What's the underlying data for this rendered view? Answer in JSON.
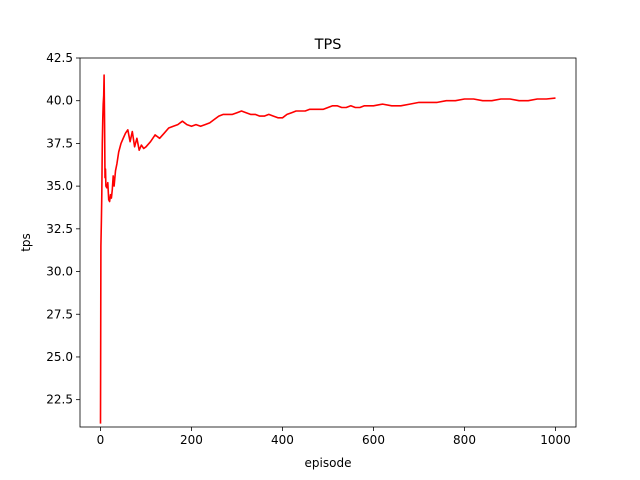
{
  "chart_data": {
    "type": "line",
    "title": "TPS",
    "xlabel": "episode",
    "ylabel": "tps",
    "xlim": [
      -45,
      1045
    ],
    "ylim": [
      20.9,
      42.5
    ],
    "xticks": [
      0,
      200,
      400,
      600,
      800,
      1000
    ],
    "xtick_labels": [
      "0",
      "200",
      "400",
      "600",
      "800",
      "1000"
    ],
    "yticks": [
      22.5,
      25.0,
      27.5,
      30.0,
      32.5,
      35.0,
      37.5,
      40.0,
      42.5
    ],
    "ytick_labels": [
      "22.5",
      "25.0",
      "27.5",
      "30.0",
      "32.5",
      "35.0",
      "37.5",
      "40.0",
      "42.5"
    ],
    "grid": false,
    "line_color": "#ff0000",
    "series": [
      {
        "x": [
          0,
          1,
          2,
          3,
          4,
          5,
          6,
          7,
          8,
          9,
          10,
          11,
          12,
          14,
          16,
          18,
          20,
          22,
          24,
          26,
          28,
          30,
          33,
          36,
          40,
          45,
          50,
          55,
          60,
          65,
          70,
          75,
          80,
          85,
          90,
          95,
          100,
          110,
          120,
          130,
          140,
          150,
          160,
          170,
          180,
          190,
          200,
          210,
          220,
          230,
          240,
          250,
          260,
          270,
          280,
          290,
          300,
          310,
          320,
          330,
          340,
          350,
          360,
          370,
          380,
          390,
          400,
          410,
          420,
          430,
          440,
          450,
          460,
          470,
          480,
          490,
          500,
          510,
          520,
          530,
          540,
          550,
          560,
          570,
          580,
          590,
          600,
          620,
          640,
          660,
          680,
          700,
          720,
          740,
          760,
          780,
          800,
          820,
          840,
          860,
          880,
          900,
          920,
          940,
          960,
          980,
          1000
        ],
        "y": [
          21.1,
          31.5,
          33.0,
          34.5,
          37.5,
          39.0,
          39.8,
          40.3,
          41.5,
          38.5,
          35.5,
          36.0,
          35.0,
          34.9,
          35.2,
          34.2,
          34.1,
          34.5,
          34.3,
          34.8,
          35.6,
          35.0,
          35.9,
          36.3,
          37.0,
          37.5,
          37.8,
          38.1,
          38.3,
          37.6,
          38.2,
          37.3,
          37.8,
          37.1,
          37.4,
          37.2,
          37.3,
          37.6,
          38.0,
          37.8,
          38.1,
          38.4,
          38.5,
          38.6,
          38.8,
          38.6,
          38.5,
          38.6,
          38.5,
          38.6,
          38.7,
          38.9,
          39.1,
          39.2,
          39.2,
          39.2,
          39.3,
          39.4,
          39.3,
          39.2,
          39.2,
          39.1,
          39.1,
          39.2,
          39.1,
          39.0,
          39.0,
          39.2,
          39.3,
          39.4,
          39.4,
          39.4,
          39.5,
          39.5,
          39.5,
          39.5,
          39.6,
          39.7,
          39.7,
          39.6,
          39.6,
          39.7,
          39.6,
          39.6,
          39.7,
          39.7,
          39.7,
          39.8,
          39.7,
          39.7,
          39.8,
          39.9,
          39.9,
          39.9,
          40.0,
          40.0,
          40.1,
          40.1,
          40.0,
          40.0,
          40.1,
          40.1,
          40.0,
          40.0,
          40.1,
          40.1,
          40.15
        ]
      }
    ]
  }
}
